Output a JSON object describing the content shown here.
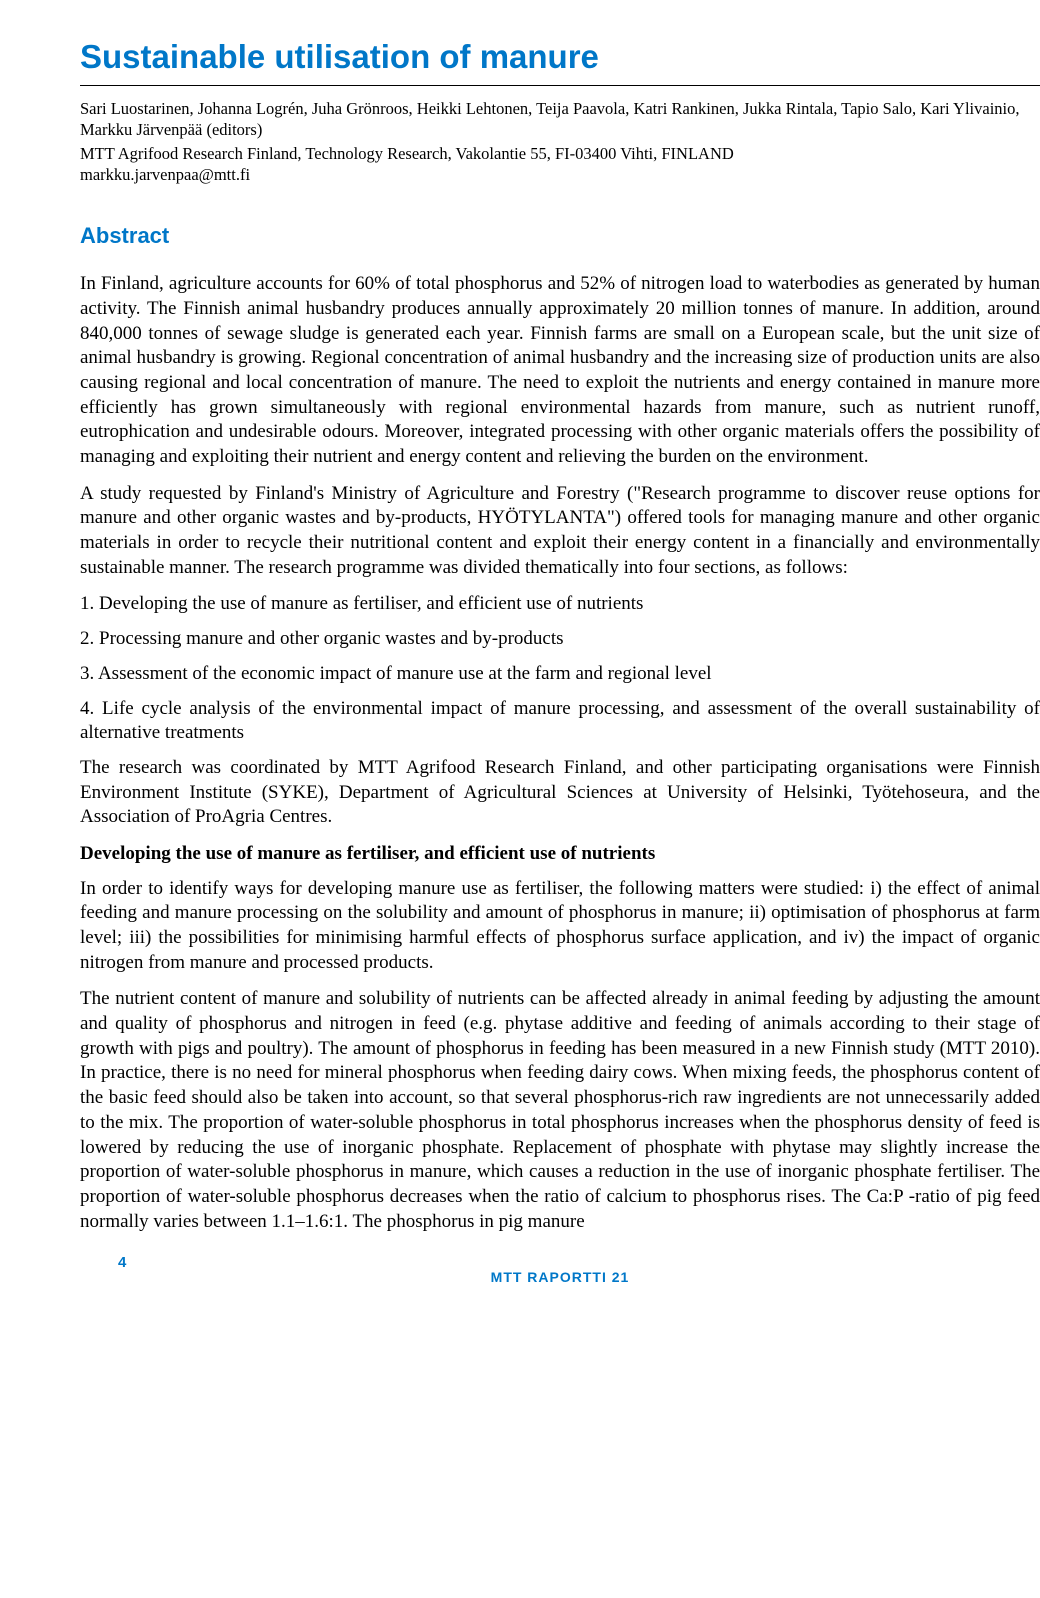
{
  "title": "Sustainable utilisation of manure",
  "authors": "Sari Luostarinen, Johanna Logrén, Juha Grönroos, Heikki Lehtonen, Teija Paavola, Katri Rankinen, Jukka Rintala, Tapio Salo, Kari Ylivainio, Markku Järvenpää (editors)",
  "affiliation": "MTT Agrifood Research Finland, Technology Research, Vakolantie 55, FI-03400 Vihti, FINLAND",
  "email": "markku.jarvenpaa@mtt.fi",
  "abstract_heading": "Abstract",
  "paragraphs": {
    "p1": "In Finland, agriculture accounts for 60% of total phosphorus and 52% of nitrogen load to waterbodies as generated by human activity. The Finnish animal husbandry produces annually approximately 20 million tonnes of manure. In addition, around 840,000 tonnes of sewage sludge is generated each year. Finnish farms are small on a European scale, but the unit size of animal husbandry is growing. Regional concentration of animal husbandry and the increasing size of production units are also causing regional and local concentration of manure. The need to exploit the nutrients and energy contained in manure more efficiently has grown simultaneously with regional environmental hazards from manure, such as nutrient runoff, eutrophication and undesirable odours. Moreover, integrated processing with other organic materials offers the possibility of managing and exploiting their nutrient and energy content and relieving the burden on the environment.",
    "p2": "A study requested by Finland's Ministry of Agriculture and Forestry (\"Research programme to discover reuse options for manure and other organic wastes and by-products, HYÖTYLANTA\") offered tools for managing manure and other organic materials in order to recycle their nutritional content and exploit their energy content in a financially and environmentally sustainable manner. The research programme was divided thematically into four sections, as follows:",
    "p3": "The research was coordinated by MTT Agrifood Research Finland, and other participating organisations were Finnish Environment Institute (SYKE), Department of Agricultural Sciences at University of Helsinki, Työtehoseura, and the Association of ProAgria Centres.",
    "p4": "In order to identify ways for developing manure use as fertiliser, the following matters were studied: i) the effect of animal feeding and manure processing on the solubility and amount of phosphorus in manure; ii) optimisation of phosphorus at farm level; iii) the possibilities for minimising harmful effects of phosphorus surface application, and iv) the impact of organic nitrogen from manure and processed products.",
    "p5": "The nutrient content of manure and solubility of nutrients can be affected already in animal feeding by adjusting the amount and quality of phosphorus and nitrogen in feed (e.g. phytase additive and feeding of animals according to their stage of growth with pigs and poultry). The amount of phosphorus in feeding has been measured in a new Finnish study (MTT 2010). In practice, there is no need for mineral phosphorus when feeding dairy cows. When mixing feeds, the phosphorus content of the basic feed should also be taken into account, so that several phosphorus-rich raw ingredients are not unnecessarily added to the mix. The proportion of water-soluble phosphorus in total phosphorus increases when the phosphorus density of feed is lowered by reducing the use of inorganic phosphate. Replacement of phosphate with phytase may slightly increase the proportion of water-soluble phosphorus in manure, which causes a reduction in the use of inorganic phosphate fertiliser. The proportion of water-soluble phosphorus decreases when the ratio of calcium to phosphorus rises. The Ca:P -ratio of pig feed normally varies between 1.1–1.6:1. The phosphorus in pig manure"
  },
  "sections": {
    "s1": "1. Developing the use of manure as fertiliser, and efficient use of nutrients",
    "s2": "2. Processing manure and other organic wastes and by-products",
    "s3": "3. Assessment of the economic impact of manure use at the farm and regional level",
    "s4": "4. Life cycle analysis of the environmental impact of manure processing, and assessment of the overall sustainability of alternative treatments"
  },
  "sub_heading": "Developing the use of manure as fertiliser, and efficient use of nutrients",
  "footer": "MTT RAPORTTI 21",
  "page_number": "4",
  "colors": {
    "accent": "#0077c8",
    "text": "#000000",
    "background": "#ffffff"
  }
}
